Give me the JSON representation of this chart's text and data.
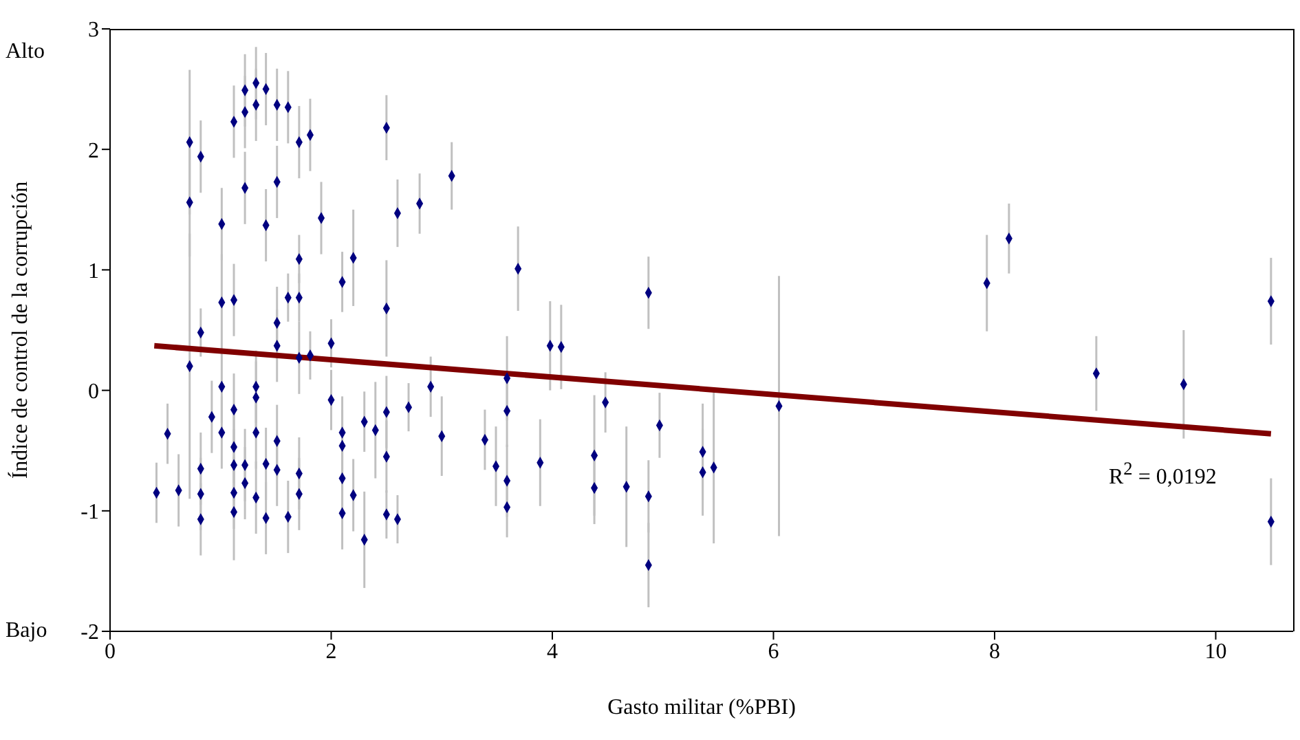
{
  "chart_data": {
    "type": "scatter",
    "xlabel": "Gasto militar (%PBI)",
    "ylabel": "Índice de control de la corrupción",
    "xlim": [
      0,
      10.7
    ],
    "xticks": [
      0,
      2,
      4,
      6,
      8,
      10
    ],
    "ylim": [
      -2,
      3
    ],
    "yticks": [
      -2,
      -1,
      0,
      1,
      2,
      3
    ],
    "annotations": [
      "Alto",
      "Bajo",
      "R$^{2}$ = 0,0192"
    ],
    "series": [
      {
        "marker": "diamond",
        "color": "#000080",
        "x": [
          0.42,
          0.52,
          0.62,
          0.72,
          0.72,
          0.72,
          0.82,
          0.82,
          0.82,
          0.82,
          0.82,
          0.92,
          1.01,
          1.01,
          1.01,
          1.01,
          1.12,
          1.12,
          1.12,
          1.12,
          1.12,
          1.12,
          1.12,
          1.22,
          1.22,
          1.22,
          1.22,
          1.22,
          1.32,
          1.32,
          1.32,
          1.32,
          1.32,
          1.32,
          1.41,
          1.41,
          1.41,
          1.41,
          1.51,
          1.51,
          1.51,
          1.51,
          1.51,
          1.51,
          1.61,
          1.61,
          1.61,
          1.71,
          1.71,
          1.71,
          1.71,
          1.71,
          1.71,
          1.81,
          1.81,
          1.91,
          2.0,
          2.0,
          2.1,
          2.1,
          2.1,
          2.1,
          2.1,
          2.2,
          2.2,
          2.3,
          2.3,
          2.4,
          2.5,
          2.5,
          2.5,
          2.5,
          2.5,
          2.6,
          2.6,
          2.7,
          2.8,
          2.9,
          3.0,
          3.09,
          3.39,
          3.49,
          3.59,
          3.59,
          3.59,
          3.59,
          3.69,
          3.89,
          3.98,
          4.08,
          4.38,
          4.38,
          4.48,
          4.67,
          4.87,
          4.87,
          4.87,
          4.97,
          5.36,
          5.36,
          5.46,
          6.05,
          7.93,
          8.13,
          8.92,
          9.71,
          10.5,
          10.5
        ],
        "values": [
          -0.85,
          -0.36,
          -0.83,
          2.06,
          1.56,
          0.2,
          1.94,
          0.48,
          -0.65,
          -0.86,
          -1.07,
          -0.22,
          1.38,
          0.73,
          0.03,
          -0.35,
          2.23,
          0.75,
          -0.16,
          -0.47,
          -0.62,
          -0.85,
          -1.01,
          2.49,
          2.31,
          1.68,
          -0.62,
          -0.77,
          2.55,
          2.37,
          0.03,
          -0.06,
          -0.35,
          -0.89,
          2.5,
          1.37,
          -0.61,
          -1.06,
          2.37,
          1.73,
          0.56,
          0.37,
          -0.42,
          -0.66,
          2.35,
          0.77,
          -1.05,
          2.06,
          1.09,
          0.77,
          0.27,
          -0.69,
          -0.86,
          2.12,
          0.29,
          1.43,
          0.39,
          -0.08,
          0.9,
          -0.35,
          -0.46,
          -0.73,
          -1.02,
          1.1,
          -0.87,
          -0.26,
          -1.24,
          -0.33,
          2.18,
          0.68,
          -0.18,
          -0.55,
          -1.03,
          1.47,
          -1.07,
          -0.14,
          1.55,
          0.03,
          -0.38,
          1.78,
          -0.41,
          -0.63,
          0.1,
          -0.17,
          -0.75,
          -0.97,
          1.01,
          -0.6,
          0.37,
          0.36,
          -0.54,
          -0.81,
          -0.1,
          -0.8,
          0.81,
          -0.88,
          -1.45,
          -0.29,
          -0.51,
          -0.68,
          -0.64,
          -0.13,
          0.89,
          1.26,
          0.14,
          0.05,
          0.74,
          -1.09
        ],
        "errors": [
          0.25,
          0.25,
          0.3,
          0.6,
          0.45,
          1.1,
          0.3,
          0.2,
          0.3,
          0.3,
          0.3,
          0.3,
          0.3,
          0.4,
          0.3,
          0.3,
          0.3,
          0.3,
          0.3,
          0.3,
          0.3,
          0.3,
          0.4,
          0.3,
          0.3,
          0.3,
          0.3,
          0.3,
          0.3,
          0.3,
          0.3,
          0.3,
          0.3,
          0.3,
          0.3,
          0.3,
          0.3,
          0.3,
          0.3,
          0.3,
          0.3,
          0.3,
          0.3,
          0.3,
          0.3,
          0.2,
          0.3,
          0.3,
          0.2,
          0.2,
          0.3,
          0.3,
          0.3,
          0.3,
          0.2,
          0.3,
          0.2,
          0.25,
          0.25,
          0.3,
          0.3,
          0.3,
          0.3,
          0.4,
          0.3,
          0.25,
          0.4,
          0.4,
          0.27,
          0.4,
          0.3,
          0.3,
          0.2,
          0.28,
          0.2,
          0.2,
          0.25,
          0.25,
          0.33,
          0.28,
          0.25,
          0.33,
          0.35,
          0.3,
          0.3,
          0.25,
          0.35,
          0.36,
          0.37,
          0.35,
          0.5,
          0.3,
          0.25,
          0.5,
          0.3,
          0.3,
          0.35,
          0.27,
          0.4,
          0.36,
          0.63,
          1.08,
          0.4,
          0.29,
          0.31,
          0.45,
          0.36,
          0.36
        ]
      },
      {
        "type": "line",
        "color": "#800000",
        "x": [
          0.4,
          10.5
        ],
        "values": [
          0.37,
          -0.36
        ]
      }
    ]
  }
}
